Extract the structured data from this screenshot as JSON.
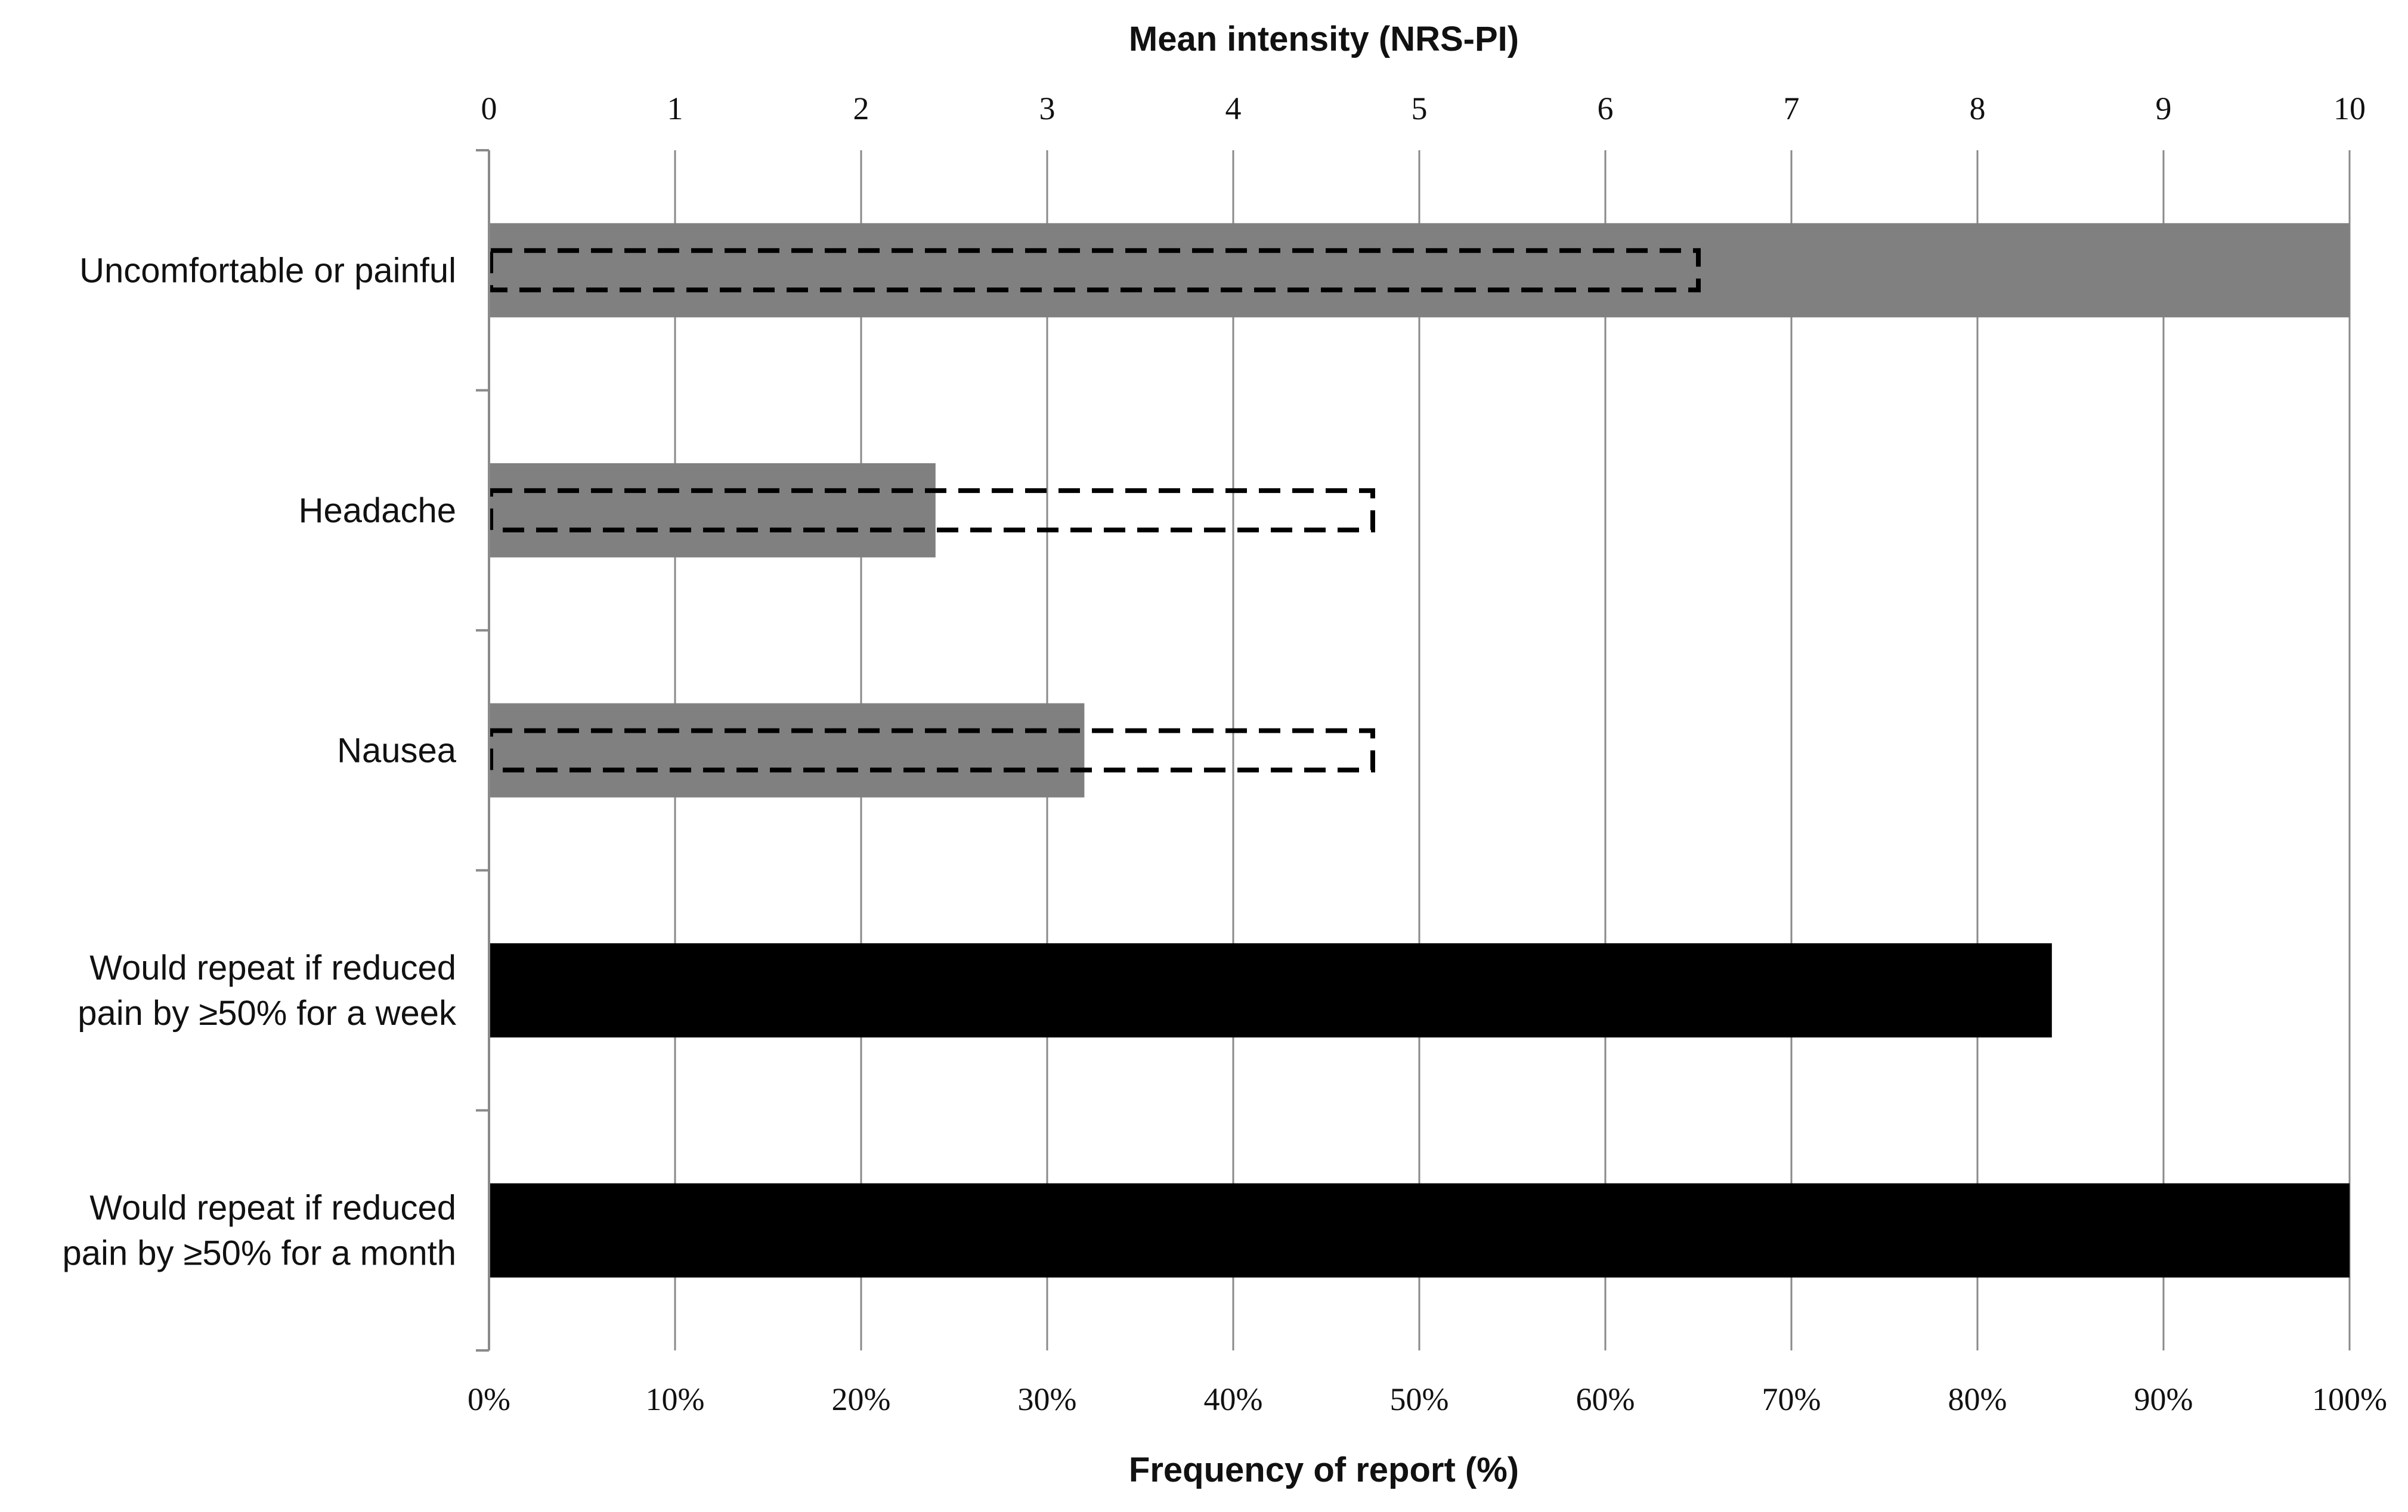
{
  "chart_data": {
    "type": "bar",
    "orientation": "horizontal",
    "top_axis": {
      "title": "Mean intensity (NRS-PI)",
      "range": [
        0,
        10
      ],
      "ticks": [
        "0",
        "1",
        "2",
        "3",
        "4",
        "5",
        "6",
        "7",
        "8",
        "9",
        "10"
      ]
    },
    "bottom_axis": {
      "title": "Frequency of report (%)",
      "range": [
        0,
        100
      ],
      "ticks": [
        "0%",
        "10%",
        "20%",
        "30%",
        "40%",
        "50%",
        "60%",
        "70%",
        "80%",
        "90%",
        "100%"
      ]
    },
    "categories": [
      [
        "Uncomfortable or painful"
      ],
      [
        "Headache"
      ],
      [
        "Nausea"
      ],
      [
        "Would repeat  if reduced",
        "pain  by ≥50%  for  a week"
      ],
      [
        "Would repeat  if reduced",
        "pain  by ≥50%  for  a month"
      ]
    ],
    "frequency_percent": [
      100,
      24,
      32,
      84,
      100
    ],
    "frequency_colors": [
      "#808080",
      "#808080",
      "#808080",
      "#000000",
      "#000000"
    ],
    "mean_intensity": [
      6.5,
      4.75,
      4.75,
      null,
      null
    ],
    "intensity_style": "dashed-outline",
    "grid": true
  }
}
